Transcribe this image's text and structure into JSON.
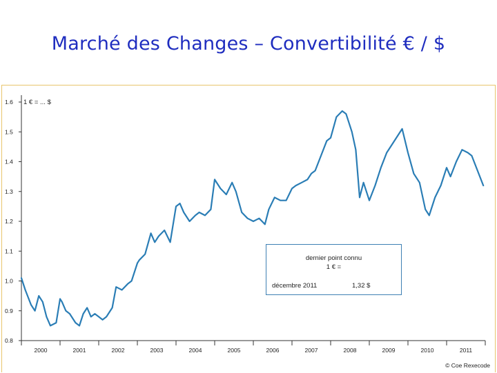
{
  "slide": {
    "title": "Marché des Changes – Convertibilité € / $"
  },
  "chart_data": {
    "type": "line",
    "unit_label": "1 € = ... $",
    "ylim": [
      0.8,
      1.6
    ],
    "y_ticks": [
      "0.8",
      "0.9",
      "1.0",
      "1.1",
      "1.2",
      "1.3",
      "1.4",
      "1.5",
      "1.6"
    ],
    "x_tick_labels": [
      "2000",
      "2001",
      "2002",
      "2003",
      "2004",
      "2005",
      "2006",
      "2007",
      "2008",
      "2009",
      "2010",
      "2011"
    ],
    "xlim": [
      2000.0,
      2012.0
    ],
    "series": [
      {
        "name": "EUR/USD",
        "color": "#2a7db5",
        "x": [
          2000.0,
          2000.1,
          2000.25,
          2000.35,
          2000.45,
          2000.55,
          2000.65,
          2000.75,
          2000.9,
          2001.0,
          2001.05,
          2001.15,
          2001.25,
          2001.4,
          2001.5,
          2001.6,
          2001.7,
          2001.8,
          2001.9,
          2002.0,
          2002.1,
          2002.2,
          2002.35,
          2002.45,
          2002.6,
          2002.75,
          2002.85,
          2003.0,
          2003.05,
          2003.2,
          2003.35,
          2003.45,
          2003.55,
          2003.7,
          2003.85,
          2004.0,
          2004.1,
          2004.2,
          2004.35,
          2004.5,
          2004.6,
          2004.75,
          2004.9,
          2005.0,
          2005.15,
          2005.3,
          2005.45,
          2005.55,
          2005.7,
          2005.85,
          2006.0,
          2006.15,
          2006.3,
          2006.4,
          2006.55,
          2006.7,
          2006.85,
          2007.0,
          2007.1,
          2007.25,
          2007.4,
          2007.5,
          2007.6,
          2007.75,
          2007.9,
          2008.0,
          2008.15,
          2008.3,
          2008.4,
          2008.55,
          2008.65,
          2008.75,
          2008.85,
          2009.0,
          2009.15,
          2009.3,
          2009.45,
          2009.55,
          2009.7,
          2009.85,
          2010.0,
          2010.15,
          2010.3,
          2010.45,
          2010.55,
          2010.7,
          2010.85,
          2011.0,
          2011.1,
          2011.25,
          2011.4,
          2011.55,
          2011.65,
          2011.8,
          2011.95
        ],
        "values": [
          1.01,
          0.97,
          0.92,
          0.9,
          0.95,
          0.93,
          0.88,
          0.85,
          0.86,
          0.94,
          0.93,
          0.9,
          0.89,
          0.86,
          0.85,
          0.89,
          0.91,
          0.88,
          0.89,
          0.88,
          0.87,
          0.88,
          0.91,
          0.98,
          0.97,
          0.99,
          1.0,
          1.06,
          1.07,
          1.09,
          1.16,
          1.13,
          1.15,
          1.17,
          1.13,
          1.25,
          1.26,
          1.23,
          1.2,
          1.22,
          1.23,
          1.22,
          1.24,
          1.34,
          1.31,
          1.29,
          1.33,
          1.3,
          1.23,
          1.21,
          1.2,
          1.21,
          1.19,
          1.24,
          1.28,
          1.27,
          1.27,
          1.31,
          1.32,
          1.33,
          1.34,
          1.36,
          1.37,
          1.42,
          1.47,
          1.48,
          1.55,
          1.57,
          1.56,
          1.5,
          1.44,
          1.28,
          1.33,
          1.27,
          1.32,
          1.38,
          1.43,
          1.45,
          1.48,
          1.51,
          1.43,
          1.36,
          1.33,
          1.24,
          1.22,
          1.28,
          1.32,
          1.38,
          1.35,
          1.4,
          1.44,
          1.43,
          1.42,
          1.37,
          1.32
        ]
      }
    ],
    "annotation": {
      "line1": "dernier point connu",
      "line2": "1 € =",
      "date": "décembre 2011",
      "value": "1,32  $"
    }
  },
  "footer": {
    "credit": "© Coe Rexecode"
  }
}
